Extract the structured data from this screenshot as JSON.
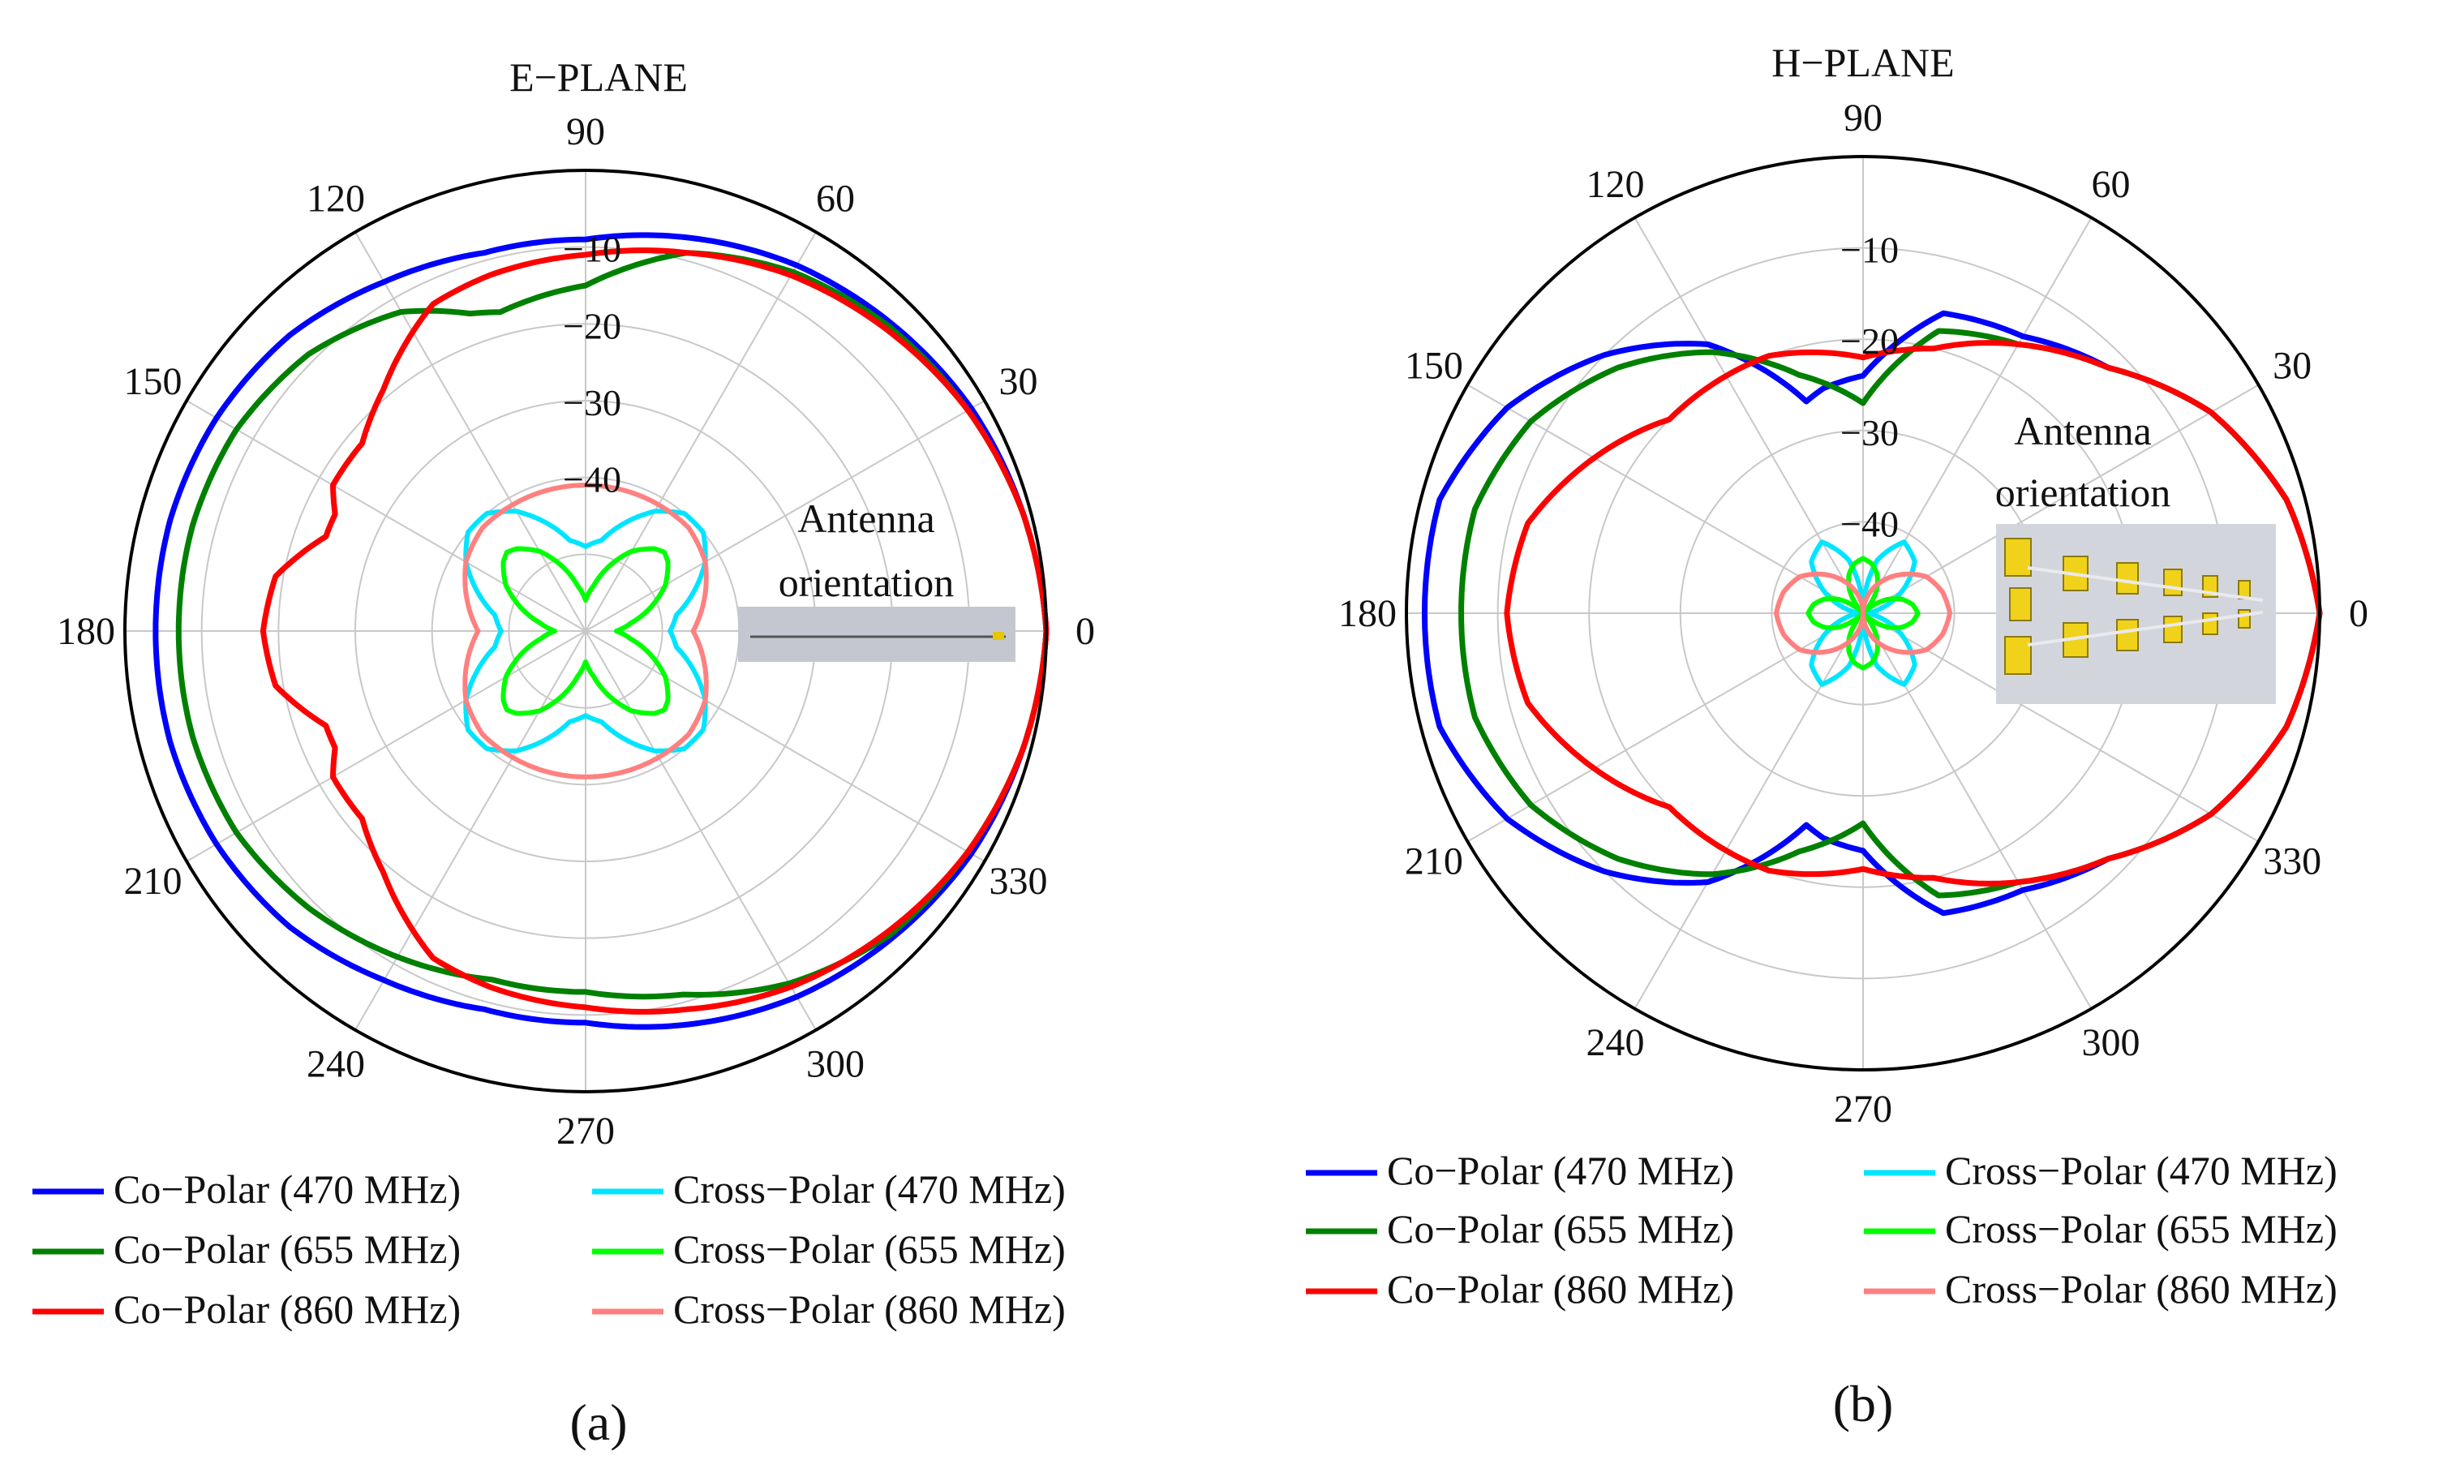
{
  "chart_data": [
    {
      "type": "polar",
      "title": "E−PLANE",
      "caption": "(a)",
      "angle_ticks": [
        "0",
        "30",
        "60",
        "90",
        "120",
        "150",
        "180",
        "210",
        "240",
        "270",
        "300",
        "330"
      ],
      "radial_ticks": [
        "−40",
        "−30",
        "−20",
        "−10"
      ],
      "radial_tick_values": [
        -40,
        -30,
        -20,
        -10
      ],
      "r_range_db": [
        -60,
        0
      ],
      "annotation": [
        "Antenna",
        "orientation"
      ],
      "series": [
        {
          "name": "Co−Polar (470 MHz)",
          "color": "#0000ff",
          "angles": [
            0,
            15,
            30,
            45,
            60,
            75,
            90,
            105,
            120,
            135,
            150,
            165,
            180,
            195,
            210,
            225,
            240,
            255,
            270,
            285,
            300,
            315,
            330,
            345,
            360
          ],
          "values": [
            0,
            -1,
            -2,
            -3.5,
            -5,
            -7,
            -9,
            -9,
            -7.5,
            -5.5,
            -4.5,
            -4,
            -4,
            -4,
            -4.5,
            -5.5,
            -7.5,
            -9,
            -9,
            -7,
            -5,
            -3.5,
            -2,
            -1,
            0
          ]
        },
        {
          "name": "Co−Polar (655 MHz)",
          "color": "#008000",
          "angles": [
            0,
            15,
            30,
            45,
            60,
            75,
            90,
            105,
            110,
            120,
            135,
            150,
            165,
            180,
            195,
            210,
            225,
            240,
            255,
            270,
            285,
            300,
            315,
            330,
            345,
            360
          ],
          "values": [
            0,
            -1,
            -2.5,
            -4,
            -6,
            -9,
            -15,
            -17,
            -16,
            -12,
            -9,
            -7.5,
            -7,
            -7,
            -7,
            -7.5,
            -9,
            -11,
            -13,
            -13,
            -11,
            -7,
            -4,
            -2.5,
            -1,
            0
          ]
        },
        {
          "name": "Co−Polar (860 MHz)",
          "color": "#ff0000",
          "angles": [
            0,
            15,
            30,
            45,
            60,
            75,
            90,
            105,
            115,
            120,
            130,
            140,
            150,
            155,
            160,
            170,
            180,
            190,
            200,
            205,
            210,
            220,
            230,
            240,
            245,
            255,
            270,
            285,
            300,
            315,
            330,
            345,
            360
          ],
          "values": [
            0,
            -1,
            -2.5,
            -4.5,
            -6.5,
            -9,
            -11,
            -12,
            -13,
            -15,
            -19,
            -22,
            -22,
            -24,
            -24,
            -19,
            -18,
            -19,
            -24,
            -24,
            -22,
            -22,
            -19,
            -15,
            -13,
            -12,
            -11,
            -9,
            -6.5,
            -4.5,
            -2.5,
            -1,
            0
          ]
        },
        {
          "name": "Cross−Polar (470 MHz)",
          "color": "#00e5ff",
          "angles": [
            0,
            10,
            20,
            30,
            40,
            45,
            50,
            60,
            70,
            80,
            90,
            100,
            110,
            120,
            130,
            135,
            140,
            150,
            160,
            170,
            180,
            190,
            200,
            210,
            220,
            225,
            230,
            240,
            250,
            260,
            270,
            280,
            290,
            300,
            310,
            315,
            320,
            330,
            340,
            350,
            360
          ],
          "values": [
            -49,
            -48,
            -45,
            -42,
            -40,
            -40,
            -40,
            -42,
            -45,
            -48,
            -49,
            -48,
            -45,
            -42,
            -40,
            -40,
            -40,
            -42,
            -45,
            -48,
            -49,
            -48,
            -45,
            -42,
            -40,
            -40,
            -40,
            -42,
            -45,
            -48,
            -49,
            -48,
            -45,
            -42,
            -40,
            -40,
            -40,
            -42,
            -45,
            -48,
            -49
          ]
        },
        {
          "name": "Cross−Polar (655 MHz)",
          "color": "#00ff00",
          "angles": [
            0,
            10,
            20,
            30,
            40,
            45,
            50,
            60,
            70,
            80,
            90,
            100,
            110,
            120,
            130,
            135,
            140,
            150,
            160,
            170,
            180,
            190,
            200,
            210,
            220,
            225,
            230,
            240,
            250,
            260,
            270,
            280,
            290,
            300,
            310,
            315,
            320,
            330,
            340,
            350,
            360
          ],
          "values": [
            -56,
            -54,
            -51,
            -48,
            -46,
            -45.5,
            -46,
            -48,
            -51,
            -54,
            -56,
            -54,
            -51,
            -48,
            -46,
            -45.5,
            -46,
            -48,
            -51,
            -54,
            -56,
            -54,
            -51,
            -48,
            -46,
            -45.5,
            -46,
            -48,
            -51,
            -54,
            -56,
            -54,
            -51,
            -48,
            -46,
            -45.5,
            -46,
            -48,
            -51,
            -54,
            -56
          ]
        },
        {
          "name": "Cross−Polar (860 MHz)",
          "color": "#ff8080",
          "angles": [
            0,
            15,
            30,
            45,
            60,
            75,
            90,
            105,
            120,
            135,
            150,
            165,
            180,
            195,
            210,
            225,
            240,
            255,
            270,
            285,
            300,
            315,
            330,
            345,
            360
          ],
          "values": [
            -46,
            -44,
            -42,
            -41,
            -41,
            -41,
            -41,
            -41,
            -41,
            -41,
            -42,
            -44,
            -46,
            -44,
            -42,
            -41,
            -41,
            -41,
            -41,
            -41,
            -41,
            -41,
            -42,
            -44,
            -46
          ]
        }
      ]
    },
    {
      "type": "polar",
      "title": "H−PLANE",
      "caption": "(b)",
      "angle_ticks": [
        "0",
        "30",
        "60",
        "90",
        "120",
        "150",
        "180",
        "210",
        "240",
        "270",
        "300",
        "330"
      ],
      "radial_ticks": [
        "−40",
        "−30",
        "−20",
        "−10"
      ],
      "radial_tick_values": [
        -40,
        -30,
        -20,
        -10
      ],
      "r_range_db": [
        -50,
        0
      ],
      "annotation": [
        "Antenna",
        "orientation"
      ],
      "series": [
        {
          "name": "Co−Polar (470 MHz)",
          "color": "#0000ff",
          "angles": [
            0,
            15,
            30,
            45,
            60,
            75,
            90,
            100,
            105,
            120,
            135,
            150,
            165,
            180,
            195,
            210,
            225,
            240,
            255,
            260,
            270,
            285,
            300,
            315,
            330,
            345,
            360
          ],
          "values": [
            0,
            -2,
            -6,
            -12,
            -15,
            -16,
            -24,
            -25,
            -26,
            -16,
            -10,
            -5,
            -2,
            -2,
            -2,
            -5,
            -10,
            -16,
            -26,
            -25,
            -24,
            -16,
            -15,
            -12,
            -6,
            -2,
            0
          ]
        },
        {
          "name": "Co−Polar (655 MHz)",
          "color": "#008000",
          "angles": [
            0,
            15,
            30,
            45,
            60,
            75,
            90,
            105,
            120,
            135,
            150,
            165,
            180,
            195,
            210,
            225,
            240,
            255,
            270,
            285,
            300,
            315,
            330,
            345,
            360
          ],
          "values": [
            0,
            -2,
            -6,
            -12,
            -16,
            -18,
            -27,
            -23,
            -17,
            -12,
            -8,
            -6,
            -6,
            -6,
            -8,
            -12,
            -17,
            -23,
            -27,
            -18,
            -16,
            -12,
            -6,
            -2,
            0
          ]
        },
        {
          "name": "Co−Polar (860 MHz)",
          "color": "#ff0000",
          "angles": [
            0,
            15,
            30,
            45,
            60,
            75,
            90,
            100,
            110,
            120,
            135,
            150,
            165,
            180,
            195,
            210,
            225,
            240,
            250,
            260,
            270,
            285,
            300,
            315,
            330,
            345,
            360
          ],
          "values": [
            0,
            -2,
            -6,
            -12,
            -16,
            -20,
            -22,
            -21,
            -20,
            -20,
            -20,
            -16,
            -12,
            -11,
            -12,
            -16,
            -20,
            -20,
            -20,
            -21,
            -22,
            -20,
            -16,
            -12,
            -6,
            -2,
            0
          ]
        },
        {
          "name": "Cross−Polar (470 MHz)",
          "color": "#00e5ff",
          "angles": [
            0,
            15,
            30,
            45,
            60,
            75,
            90,
            105,
            120,
            135,
            150,
            165,
            180,
            195,
            210,
            225,
            240,
            255,
            270,
            285,
            300,
            315,
            330,
            345,
            360
          ],
          "values": [
            -50,
            -48,
            -45,
            -42,
            -41,
            -44,
            -50,
            -44,
            -41,
            -42,
            -45,
            -48,
            -50,
            -48,
            -45,
            -42,
            -41,
            -44,
            -50,
            -44,
            -41,
            -42,
            -45,
            -48,
            -50
          ]
        },
        {
          "name": "Cross−Polar (655 MHz)",
          "color": "#00ff00",
          "angles": [
            0,
            10,
            20,
            30,
            40,
            45,
            50,
            60,
            70,
            80,
            90,
            100,
            110,
            120,
            130,
            135,
            140,
            150,
            160,
            170,
            180,
            190,
            200,
            210,
            220,
            225,
            230,
            240,
            250,
            260,
            270,
            280,
            290,
            300,
            310,
            315,
            320,
            330,
            340,
            350,
            360
          ],
          "values": [
            -44,
            -44.5,
            -45.5,
            -47,
            -49,
            -50,
            -49,
            -47,
            -45.5,
            -44.5,
            -44,
            -44.5,
            -45.5,
            -47,
            -49,
            -50,
            -49,
            -47,
            -45.5,
            -44.5,
            -44,
            -44.5,
            -45.5,
            -47,
            -49,
            -50,
            -49,
            -47,
            -45.5,
            -44.5,
            -44,
            -44.5,
            -45.5,
            -47,
            -49,
            -50,
            -49,
            -47,
            -45.5,
            -44.5,
            -44
          ]
        },
        {
          "name": "Cross−Polar (860 MHz)",
          "color": "#ff8080",
          "angles": [
            0,
            15,
            30,
            45,
            60,
            75,
            90,
            105,
            120,
            135,
            150,
            165,
            180,
            195,
            210,
            225,
            240,
            255,
            270,
            285,
            300,
            315,
            330,
            345,
            360
          ],
          "values": [
            -40.5,
            -41,
            -42,
            -44,
            -46,
            -48,
            -50,
            -48,
            -46,
            -44,
            -42,
            -41,
            -40.5,
            -41,
            -42,
            -44,
            -46,
            -48,
            -50,
            -48,
            -46,
            -44,
            -42,
            -41,
            -40.5
          ]
        }
      ]
    }
  ]
}
